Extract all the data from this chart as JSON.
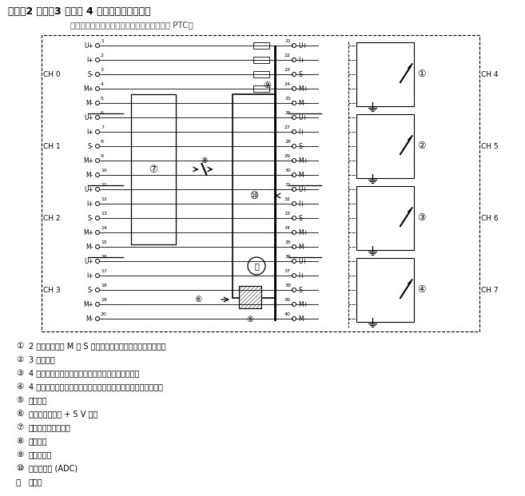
{
  "title": "接线：2 线制、3 线制和 4 线制连接的电阻测量",
  "subtitle": "以下可能的接线方式也适用于硅温度传感器和 PTC。",
  "bg_color": "#ffffff",
  "legend_items": [
    [
      "①",
      "2 线制连接。在 M 和 S 间插入桥接器（无线路阻抗补偿）。"
    ],
    [
      "②",
      "3 线制连接"
    ],
    [
      "③",
      "4 线制连接。不得为第四条线路接线（保持未使用）"
    ],
    [
      "④",
      "4 线制连接。将第四条线路路由到机柜中的端子板，但不接线。"
    ],
    [
      "⑤",
      "内部电源"
    ],
    [
      "⑥",
      "来自背板总线的 + 5 V 电压"
    ],
    [
      "⑦",
      "逻辑和背板总线接口"
    ],
    [
      "⑧",
      "电气隔离"
    ],
    [
      "⑨",
      "多路转换器"
    ],
    [
      "⑩",
      "模数转换器 (ADC)"
    ],
    [
      "⑪",
      "电流源"
    ]
  ],
  "pins_left": [
    [
      "U+",
      1
    ],
    [
      "I+",
      2
    ],
    [
      "S-",
      3
    ],
    [
      "M+",
      4
    ],
    [
      "M-",
      5
    ],
    [
      "U+",
      6
    ],
    [
      "I+",
      7
    ],
    [
      "S-",
      8
    ],
    [
      "M+",
      9
    ],
    [
      "M-",
      10
    ],
    [
      "U+",
      11
    ],
    [
      "I+",
      12
    ],
    [
      "S-",
      13
    ],
    [
      "M+",
      14
    ],
    [
      "M-",
      15
    ],
    [
      "U+",
      16
    ],
    [
      "I+",
      17
    ],
    [
      "S-",
      18
    ],
    [
      "M+",
      19
    ],
    [
      "M-",
      20
    ]
  ],
  "pins_right": [
    [
      "U+",
      21
    ],
    [
      "I+",
      22
    ],
    [
      "S-",
      23
    ],
    [
      "M+",
      24
    ],
    [
      "M-",
      25
    ],
    [
      "U+",
      26
    ],
    [
      "I+",
      27
    ],
    [
      "S-",
      28
    ],
    [
      "M+",
      29
    ],
    [
      "M-",
      30
    ],
    [
      "U+",
      31
    ],
    [
      "I+",
      32
    ],
    [
      "S-",
      33
    ],
    [
      "M+",
      34
    ],
    [
      "M-",
      35
    ],
    [
      "U+",
      36
    ],
    [
      "I+",
      37
    ],
    [
      "S-",
      38
    ],
    [
      "M+",
      39
    ],
    [
      "M-",
      40
    ]
  ],
  "ch_left": [
    [
      "CH 0",
      0,
      5
    ],
    [
      "CH 1",
      5,
      10
    ],
    [
      "CH 2",
      10,
      15
    ],
    [
      "CH 3",
      15,
      20
    ]
  ],
  "ch_right": [
    [
      "CH 4",
      0,
      5
    ],
    [
      "CH 5",
      5,
      10
    ],
    [
      "CH 6",
      10,
      15
    ],
    [
      "CH 7",
      15,
      20
    ]
  ],
  "sensor_labels": [
    "①",
    "②",
    "③",
    "④"
  ]
}
